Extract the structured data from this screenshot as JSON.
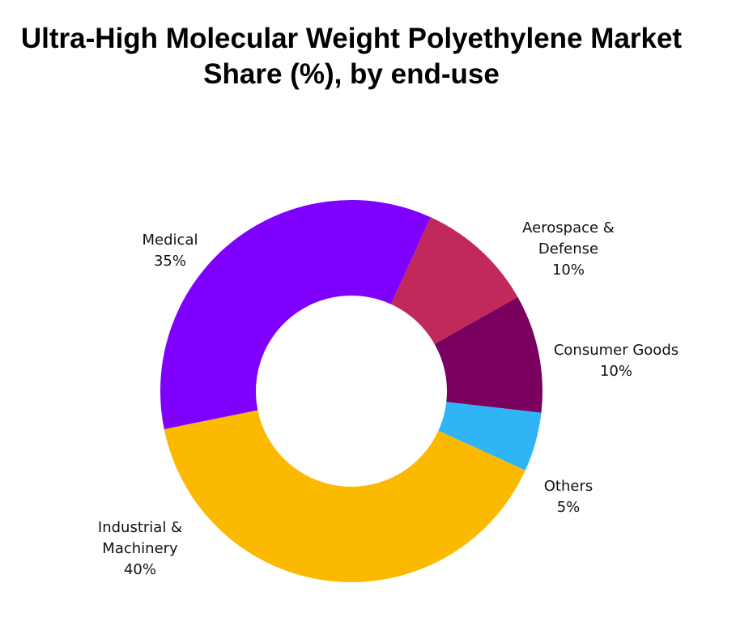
{
  "chart_data": {
    "type": "donut",
    "title": "Ultra-High Molecular Weight Polyethylene Market Share (%), by end-use",
    "categories": [
      "Aerospace & Defense",
      "Consumer Goods",
      "Others",
      "Industrial & Machinery",
      "Medical"
    ],
    "values": [
      10,
      10,
      5,
      40,
      35
    ],
    "value_labels": [
      "10%",
      "10%",
      "5%",
      "40%",
      "35%"
    ],
    "colors": [
      "#c0295a",
      "#7a0060",
      "#2fb5f5",
      "#fbb900",
      "#7f00ff"
    ]
  }
}
